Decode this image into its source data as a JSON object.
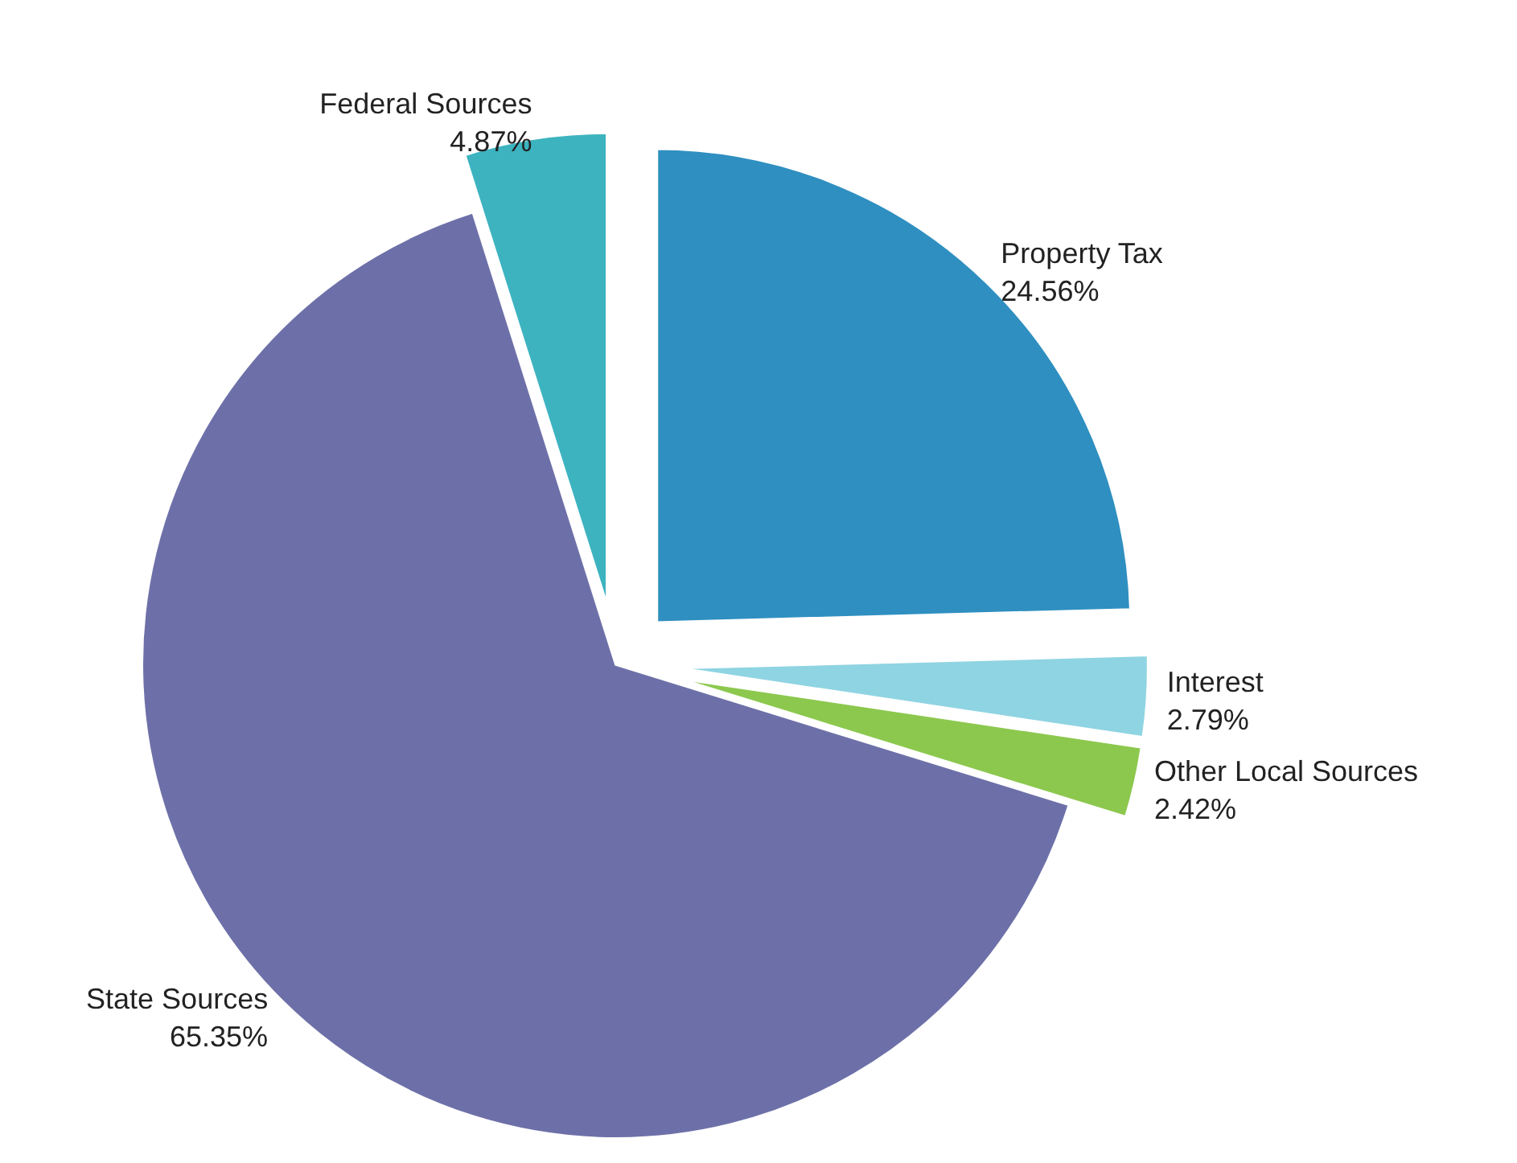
{
  "chart_data": {
    "type": "pie",
    "categories": [
      "Property Tax",
      "Interest",
      "Other Local Sources",
      "State Sources",
      "Federal Sources"
    ],
    "values": [
      24.56,
      2.79,
      2.42,
      65.35,
      4.87
    ],
    "value_labels": [
      "24.56%",
      "2.79%",
      "2.42%",
      "65.35%",
      "4.87%"
    ],
    "colors": [
      "#2f8fc0",
      "#8fd4e2",
      "#8cc84e",
      "#6d70a8",
      "#3db3c0"
    ]
  }
}
